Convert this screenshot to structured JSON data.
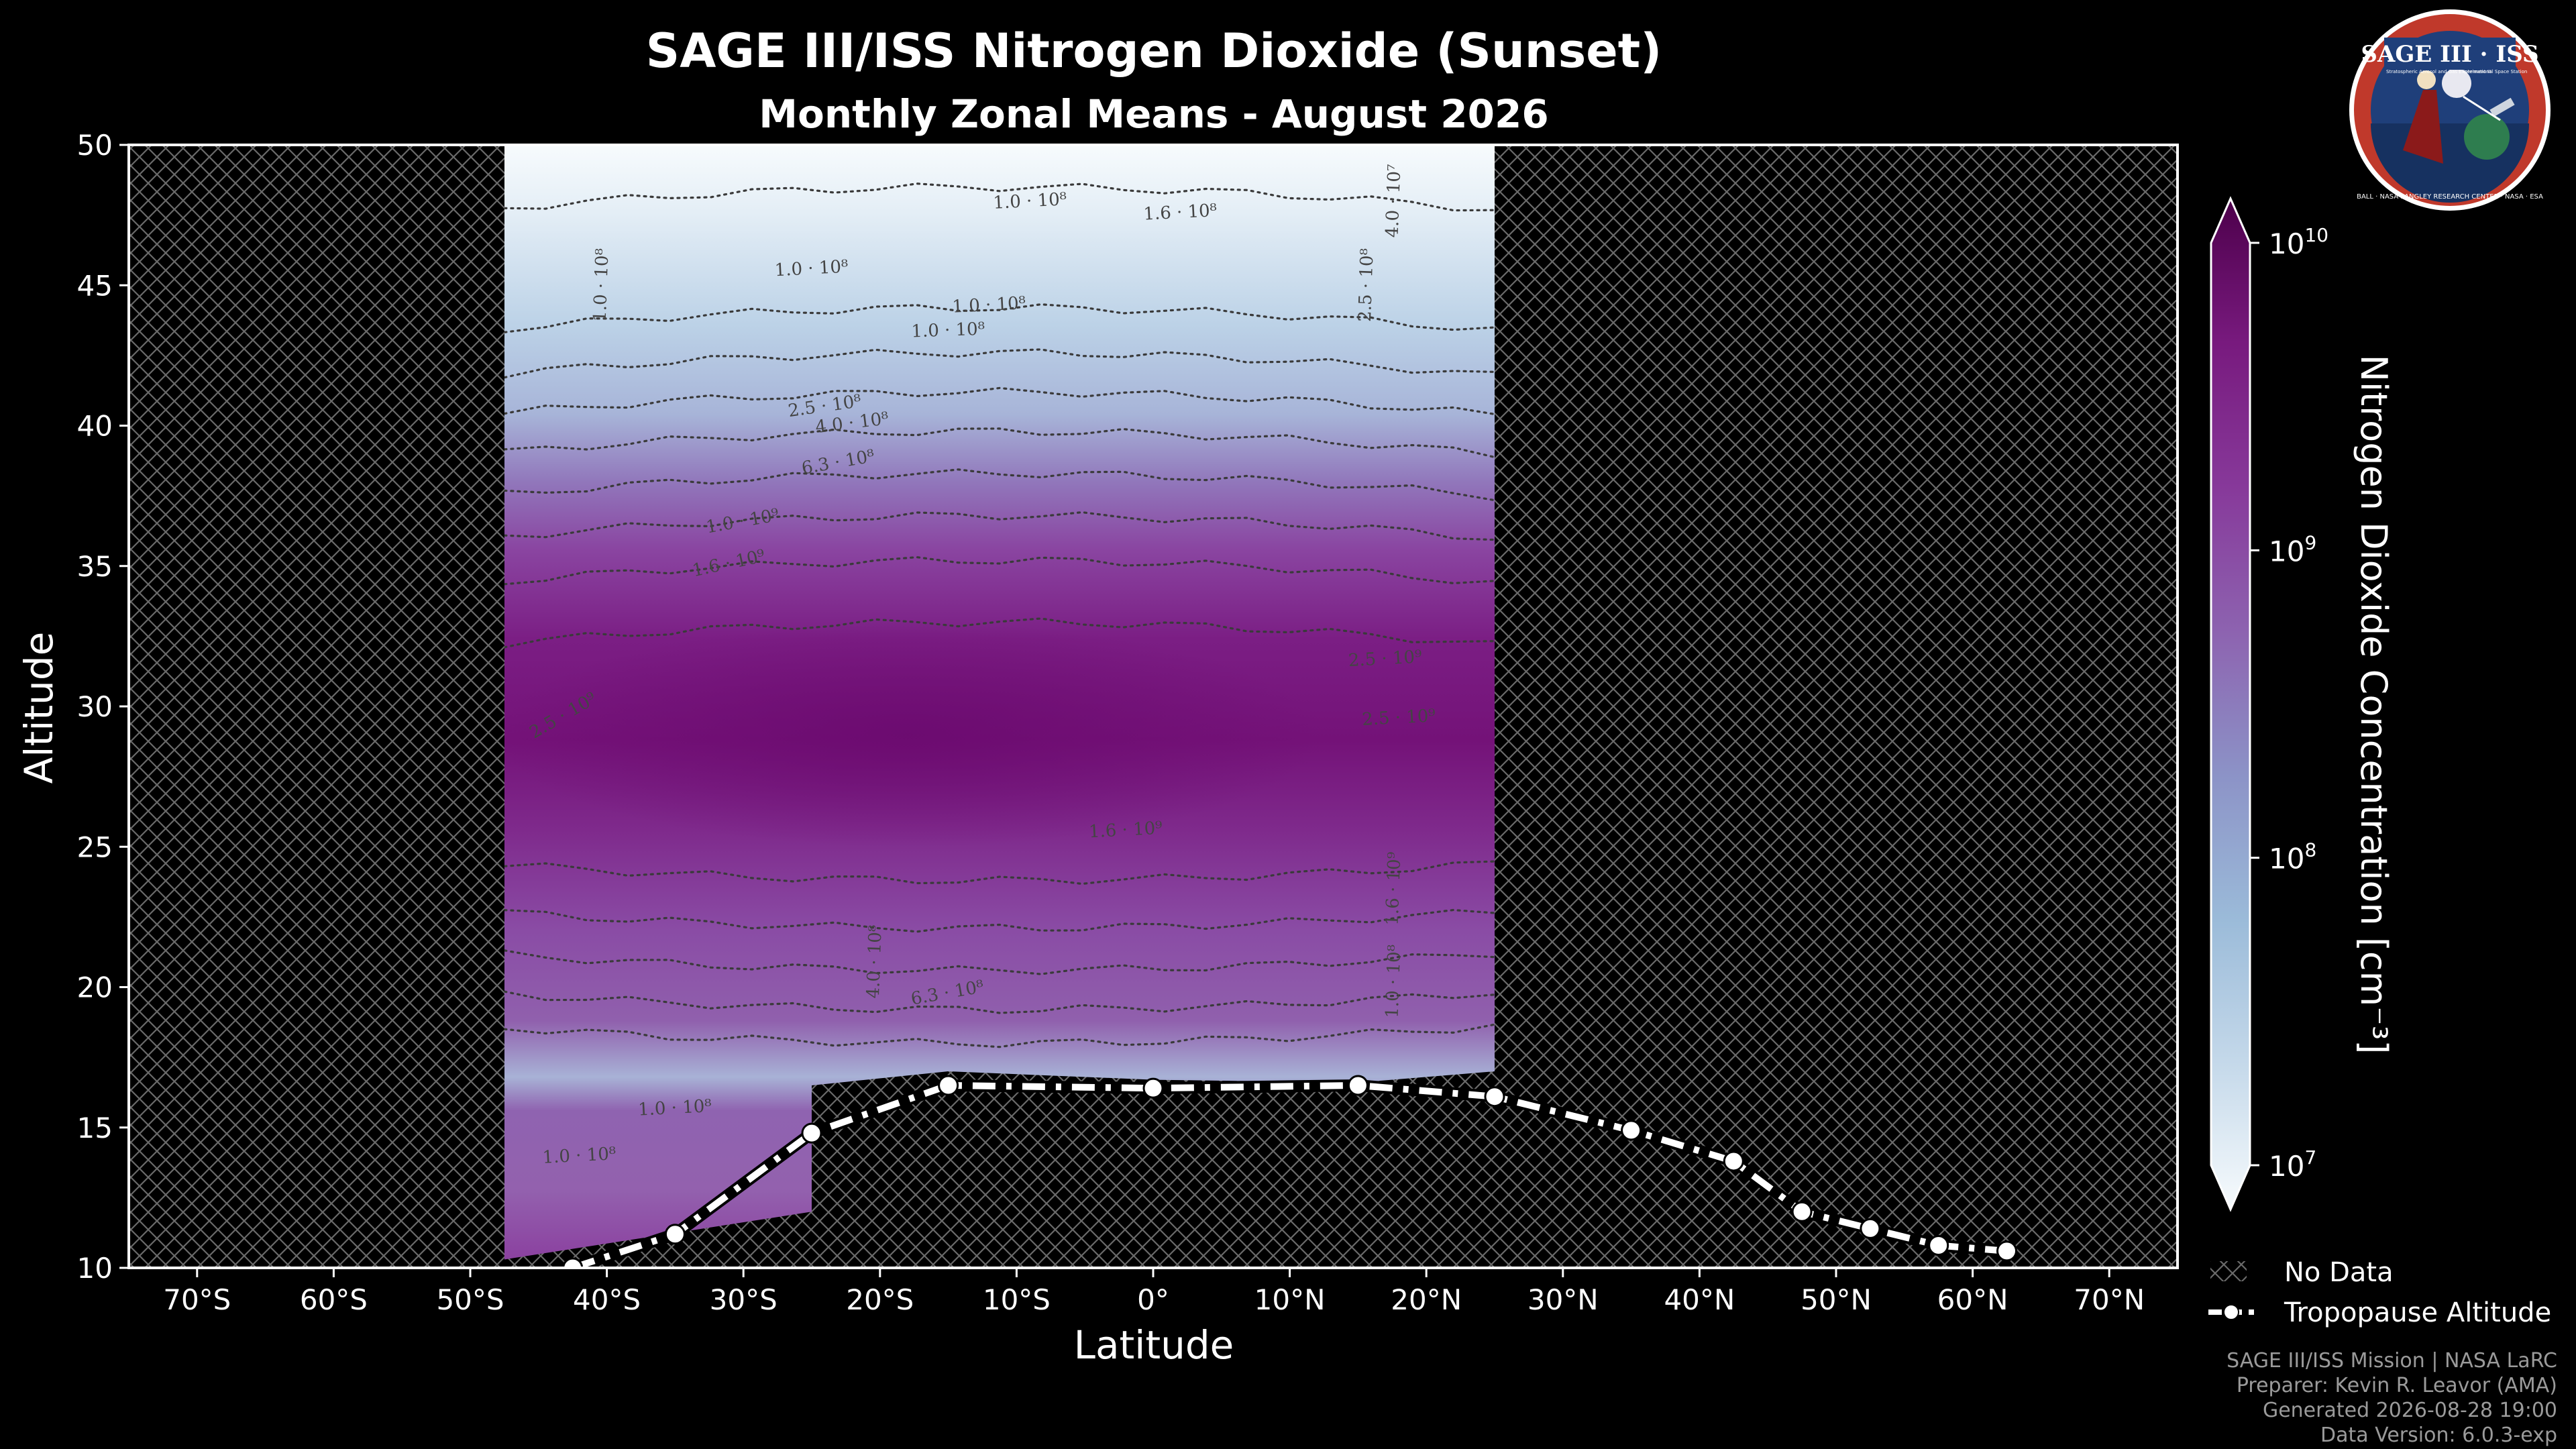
{
  "chart_data": {
    "type": "heatmap",
    "title": "SAGE III/ISS Nitrogen Dioxide (Sunset)",
    "subtitle": "Monthly Zonal Means - August 2026",
    "xlabel": "Latitude",
    "ylabel": "Altitude",
    "xlim": [
      -75,
      75
    ],
    "ylim": [
      10,
      50
    ],
    "x_ticks": [
      -70,
      -60,
      -50,
      -40,
      -30,
      -20,
      -10,
      0,
      10,
      20,
      30,
      40,
      50,
      60,
      70
    ],
    "x_tick_labels": [
      "70°S",
      "60°S",
      "50°S",
      "40°S",
      "30°S",
      "20°S",
      "10°S",
      "0°",
      "10°N",
      "20°N",
      "30°N",
      "40°N",
      "50°N",
      "60°N",
      "70°N"
    ],
    "y_ticks": [
      10,
      15,
      20,
      25,
      30,
      35,
      40,
      45,
      50
    ],
    "y_tick_labels": [
      "10",
      "15",
      "20",
      "25",
      "30",
      "35",
      "40",
      "45",
      "50"
    ],
    "data_extent_lat": [
      -47.5,
      25
    ],
    "data_floor": [
      {
        "lat": -47.5,
        "alt": 10.3
      },
      {
        "lat": -25,
        "alt": 12.0
      },
      {
        "lat": -25,
        "alt": 16.5
      },
      {
        "lat": -15,
        "alt": 17.0
      },
      {
        "lat": 0,
        "alt": 16.7
      },
      {
        "lat": 15,
        "alt": 16.6
      },
      {
        "lat": 25,
        "alt": 17.0
      }
    ],
    "colorbar": {
      "label": "Nitrogen Dioxide Concentration [cm⁻³]",
      "scale": "log",
      "min": 10000000,
      "max": 10000000000,
      "ticks": [
        10000000,
        100000000,
        1000000000,
        10000000000
      ],
      "tick_labels": [
        {
          "base": "10",
          "exp": "7"
        },
        {
          "base": "10",
          "exp": "8"
        },
        {
          "base": "10",
          "exp": "9"
        },
        {
          "base": "10",
          "exp": "10"
        }
      ],
      "colors": [
        "#f7fbfd",
        "#c5d9ea",
        "#9bbbd9",
        "#8c93c7",
        "#8d63b0",
        "#87399a",
        "#781a7e",
        "#4d004b"
      ]
    },
    "contour_labels": [
      {
        "text": "1.0 · 10⁸",
        "lat": -9,
        "alt": 47.8,
        "rot": -3
      },
      {
        "text": "1.6 · 10⁸",
        "lat": 2,
        "alt": 47.4,
        "rot": -3
      },
      {
        "text": "4.0 · 10⁷",
        "lat": 18,
        "alt": 48,
        "rot": -88
      },
      {
        "text": "1.0 · 10⁸",
        "lat": -25,
        "alt": 45.4,
        "rot": -3
      },
      {
        "text": "1.0 · 10⁸",
        "lat": -12,
        "alt": 44.1,
        "rot": -3
      },
      {
        "text": "1.0 · 10⁸",
        "lat": -15,
        "alt": 43.2,
        "rot": -2
      },
      {
        "text": "1.0 · 10⁸",
        "lat": -40,
        "alt": 45.0,
        "rot": -88
      },
      {
        "text": "2.5 · 10⁸",
        "lat": 16,
        "alt": 45.0,
        "rot": -88
      },
      {
        "text": "2.5 · 10⁸",
        "lat": -24,
        "alt": 40.5,
        "rot": -8
      },
      {
        "text": "4.0 · 10⁸",
        "lat": -22,
        "alt": 39.9,
        "rot": -7
      },
      {
        "text": "6.3 · 10⁸",
        "lat": -23,
        "alt": 38.5,
        "rot": -10
      },
      {
        "text": "1.0 · 10⁹",
        "lat": -30,
        "alt": 36.4,
        "rot": -10
      },
      {
        "text": "1.6 · 10⁹",
        "lat": -31,
        "alt": 34.9,
        "rot": -12
      },
      {
        "text": "2.5 · 10⁹",
        "lat": -43,
        "alt": 29.5,
        "rot": -30
      },
      {
        "text": "2.5 · 10⁹",
        "lat": 17,
        "alt": 31.5,
        "rot": -3
      },
      {
        "text": "2.5 · 10⁹",
        "lat": 18,
        "alt": 29.4,
        "rot": -3
      },
      {
        "text": "1.6 · 10⁹",
        "lat": -2,
        "alt": 25.4,
        "rot": -3
      },
      {
        "text": "1.6 · 10⁹",
        "lat": 18,
        "alt": 23.5,
        "rot": -88
      },
      {
        "text": "4.0 · 10⁸",
        "lat": -20,
        "alt": 20.9,
        "rot": -88
      },
      {
        "text": "6.3 · 10⁸",
        "lat": -15,
        "alt": 19.6,
        "rot": -10
      },
      {
        "text": "1.0 · 10⁸",
        "lat": 18,
        "alt": 20.2,
        "rot": -88
      },
      {
        "text": "1.0 · 10⁸",
        "lat": -35,
        "alt": 15.5,
        "rot": -3
      },
      {
        "text": "1.0 · 10⁸",
        "lat": -42,
        "alt": 13.8,
        "rot": -3
      }
    ],
    "contour_levels": [
      {
        "level": "4.0 · 10⁷",
        "alt_at_center": 48.5
      },
      {
        "level": "1.0 · 10⁸",
        "alt_at_center": 44.2
      },
      {
        "level": "1.6 · 10⁸",
        "alt_at_center": 42.6
      },
      {
        "level": "2.5 · 10⁸",
        "alt_at_center": 41.2
      },
      {
        "level": "4.0 · 10⁸",
        "alt_at_center": 39.8
      },
      {
        "level": "6.3 · 10⁸",
        "alt_at_center": 38.3
      },
      {
        "level": "1.0 · 10⁹",
        "alt_at_center": 36.8
      },
      {
        "level": "1.6 · 10⁹",
        "alt_at_center": 35.2
      },
      {
        "level": "2.5 · 10⁹",
        "alt_at_center": 33.0
      },
      {
        "level": "2.5 · 10⁹",
        "alt_at_center": 23.8
      },
      {
        "level": "1.6 · 10⁹",
        "alt_at_center": 22.1
      },
      {
        "level": "1.0 · 10⁹",
        "alt_at_center": 20.6
      },
      {
        "level": "6.3 · 10⁸",
        "alt_at_center": 19.2
      },
      {
        "level": "4.0 · 10⁸",
        "alt_at_center": 18.0
      }
    ],
    "series": [
      {
        "name": "Tropopause Altitude",
        "x": [
          -42.5,
          -35,
          -25,
          -15,
          0,
          15,
          25,
          35,
          42.5,
          47.5,
          52.5,
          57.5,
          62.5
        ],
        "y": [
          10.0,
          11.2,
          14.8,
          16.5,
          16.4,
          16.5,
          16.1,
          14.9,
          13.8,
          12.0,
          11.4,
          10.8,
          10.6
        ]
      }
    ],
    "legend": {
      "placement": "bottom-right",
      "entries": [
        {
          "label": "No Data"
        },
        {
          "label": "Tropopause Altitude"
        }
      ]
    },
    "grid": false
  },
  "credits": {
    "line1": "SAGE III/ISS Mission | NASA LaRC",
    "line2": "Preparer: Kevin R. Leavor (AMA)",
    "line3": "Generated 2026-08-28 19:00",
    "line4": "Data Version: 6.0.3-exp"
  },
  "logo": {
    "title": "SAGE III · ISS",
    "left_text": "Stratospheric Aerosol and Gas Experiment III",
    "right_text": "International Space Station",
    "ring_text": "BALL · NASA LANGLEY RESEARCH CENTER · NASA · ESA",
    "colors": {
      "ring": "#c0392b",
      "field": "#1f3f7a",
      "rim": "#ffffff"
    }
  },
  "colors": {
    "background": "#000000",
    "axes_frame": "#ffffff",
    "hatch": "#6a6a6a",
    "contour": "#3a3a3a",
    "tropopause": "#ffffff"
  }
}
